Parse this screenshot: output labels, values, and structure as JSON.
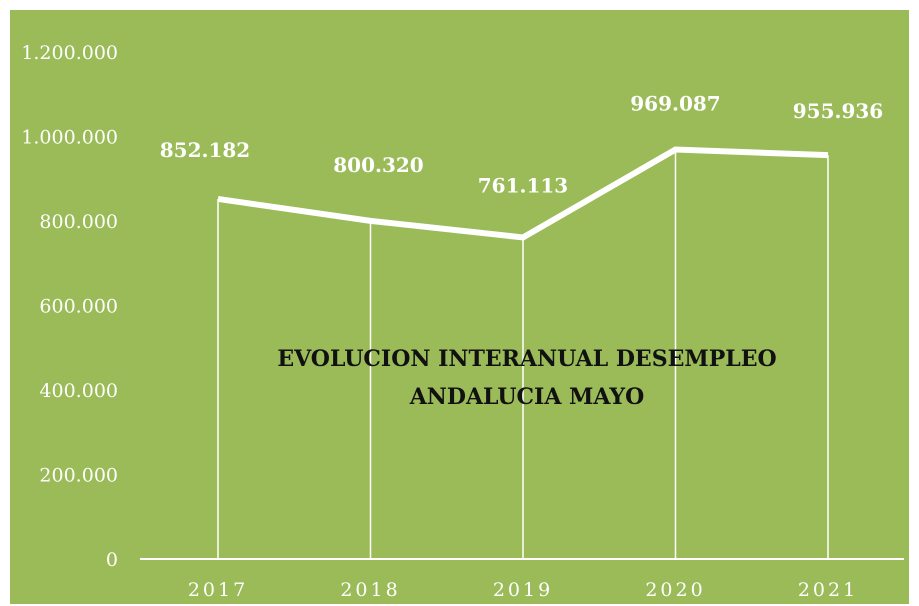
{
  "chart_data": {
    "type": "line",
    "title_lines": [
      "EVOLUCION INTERANUAL DESEMPLEO",
      "ANDALUCIA MAYO"
    ],
    "categories": [
      "2017",
      "2018",
      "2019",
      "2020",
      "2021"
    ],
    "values": [
      852182,
      800320,
      761113,
      969087,
      955936
    ],
    "data_labels": [
      "852.182",
      "800.320",
      "761.113",
      "969.087",
      "955.936"
    ],
    "ylim": [
      0,
      1200000
    ],
    "y_ticks": [
      0,
      200000,
      400000,
      600000,
      800000,
      1000000,
      1200000
    ],
    "y_tick_labels": [
      "0",
      "200.000",
      "400.000",
      "600.000",
      "800.000",
      "1.000.000",
      "1.200.000"
    ],
    "drop_lines": true,
    "grid": false,
    "legend": "none"
  },
  "colors": {
    "background": "#9bbb59",
    "line": "#ffffff",
    "text_light": "#ffffff",
    "title": "#111111"
  }
}
